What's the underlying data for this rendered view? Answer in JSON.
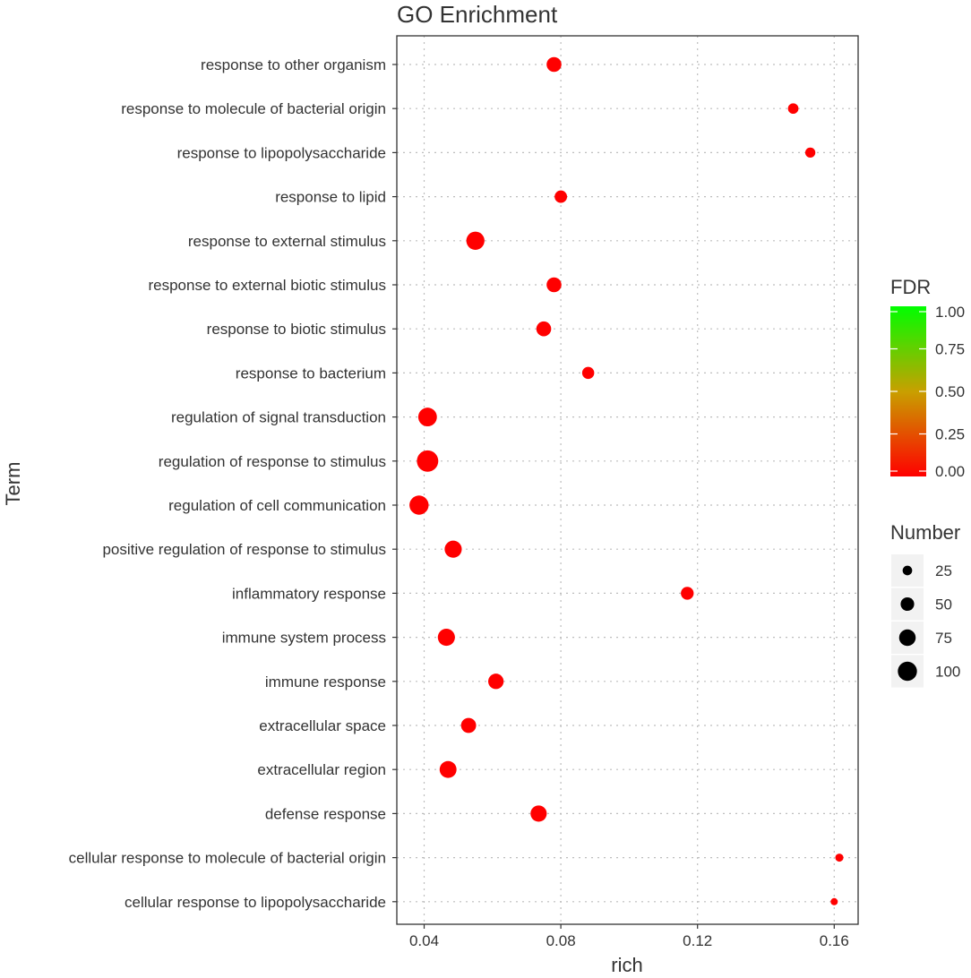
{
  "chart_data": {
    "type": "scatter",
    "title": "GO Enrichment",
    "xlabel": "rich",
    "ylabel": "Term",
    "xlim": [
      0.032,
      0.167
    ],
    "xticks": [
      0.04,
      0.08,
      0.12,
      0.16
    ],
    "xtick_labels": [
      "0.04",
      "0.08",
      "0.12",
      "0.16"
    ],
    "grid": "dotted",
    "terms": [
      {
        "label": "response to other organism",
        "rich": 0.078,
        "number": 60,
        "fdr": 0.0
      },
      {
        "label": "response to molecule of bacterial origin",
        "rich": 0.148,
        "number": 30,
        "fdr": 0.0
      },
      {
        "label": "response to lipopolysaccharide",
        "rich": 0.153,
        "number": 28,
        "fdr": 0.0
      },
      {
        "label": "response to lipid",
        "rich": 0.08,
        "number": 42,
        "fdr": 0.0
      },
      {
        "label": "response to external stimulus",
        "rich": 0.055,
        "number": 90,
        "fdr": 0.0
      },
      {
        "label": "response to external biotic stimulus",
        "rich": 0.078,
        "number": 60,
        "fdr": 0.0
      },
      {
        "label": "response to biotic stimulus",
        "rich": 0.075,
        "number": 60,
        "fdr": 0.0
      },
      {
        "label": "response to bacterium",
        "rich": 0.088,
        "number": 40,
        "fdr": 0.0
      },
      {
        "label": "regulation of signal transduction",
        "rich": 0.041,
        "number": 95,
        "fdr": 0.0
      },
      {
        "label": "regulation of response to stimulus",
        "rich": 0.041,
        "number": 125,
        "fdr": 0.0
      },
      {
        "label": "regulation of cell communication",
        "rich": 0.0385,
        "number": 100,
        "fdr": 0.0
      },
      {
        "label": "positive regulation of response to stimulus",
        "rich": 0.0485,
        "number": 80,
        "fdr": 0.0
      },
      {
        "label": "inflammatory response",
        "rich": 0.117,
        "number": 45,
        "fdr": 0.0
      },
      {
        "label": "immune system process",
        "rich": 0.0465,
        "number": 80,
        "fdr": 0.0
      },
      {
        "label": "immune response",
        "rich": 0.061,
        "number": 65,
        "fdr": 0.0
      },
      {
        "label": "extracellular space",
        "rich": 0.053,
        "number": 62,
        "fdr": 0.0
      },
      {
        "label": "extracellular region",
        "rich": 0.047,
        "number": 78,
        "fdr": 0.0
      },
      {
        "label": "defense response",
        "rich": 0.0735,
        "number": 72,
        "fdr": 0.0
      },
      {
        "label": "cellular response to molecule of bacterial origin",
        "rich": 0.1615,
        "number": 18,
        "fdr": 0.0
      },
      {
        "label": "cellular response to lipopolysaccharide",
        "rich": 0.16,
        "number": 14,
        "fdr": 0.0
      }
    ],
    "legend_fdr": {
      "title": "FDR",
      "ticks": [
        1.0,
        0.75,
        0.5,
        0.25,
        0.0
      ],
      "tick_labels": [
        "1.00",
        "0.75",
        "0.50",
        "0.25",
        "0.00"
      ],
      "color_high": "#00ff00",
      "color_mid": "#c8a000",
      "color_low": "#ff0000"
    },
    "legend_number": {
      "title": "Number",
      "values": [
        25,
        50,
        75,
        100
      ],
      "labels": [
        "25",
        "50",
        "75",
        "100"
      ]
    },
    "point_color": "#ff0000",
    "legend_point_color": "#000000"
  }
}
